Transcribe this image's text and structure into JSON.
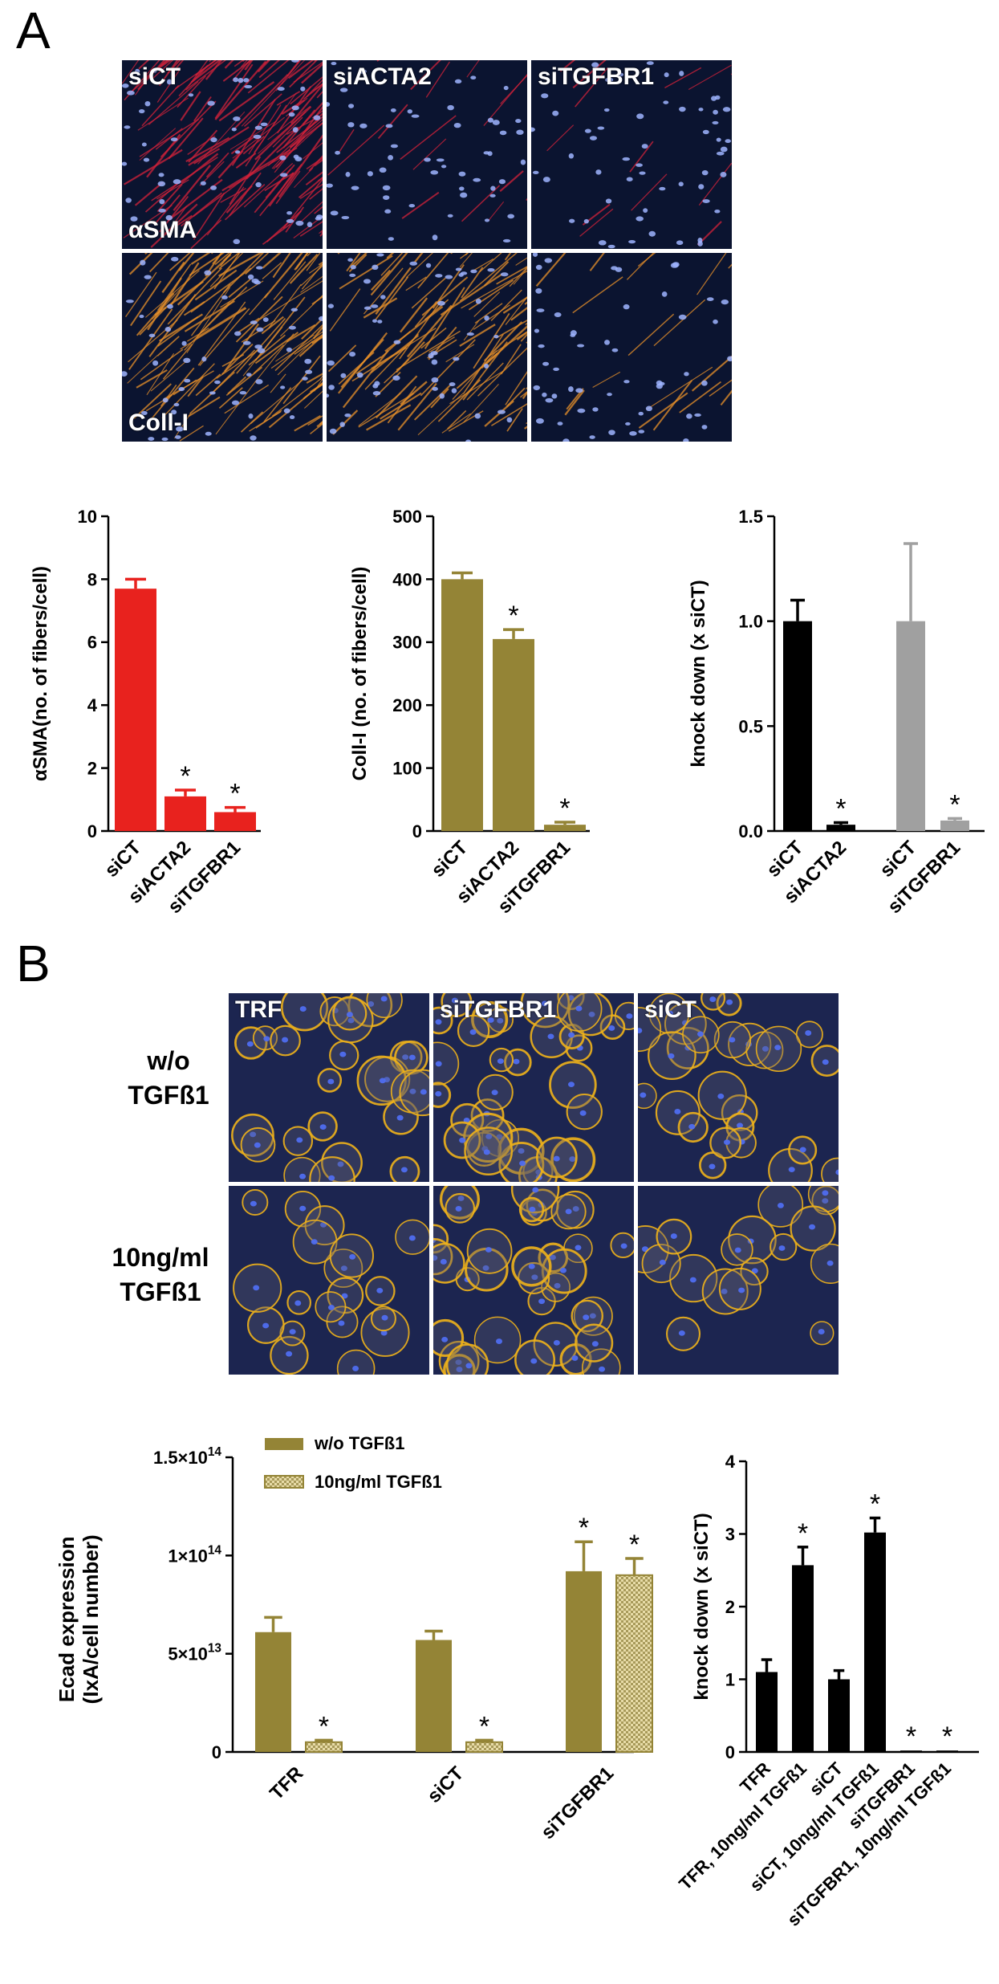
{
  "panel_a": {
    "letter": "A",
    "image_grid": {
      "columns": [
        "siCT",
        "siACTA2",
        "siTGFBR1"
      ],
      "rows": [
        {
          "label": "αSMA",
          "stain_color": "#d3223a"
        },
        {
          "label": "Coll-I",
          "stain_color": "#e8902a"
        }
      ],
      "nuclei_color": "#9fb4ff",
      "background_color": "#0b1430"
    }
  },
  "panel_b": {
    "letter": "B",
    "image_grid": {
      "columns": [
        "TRF",
        "siTGFBR1",
        "siCT"
      ],
      "rows": [
        {
          "label_lines": [
            "w/o",
            "TGFß1"
          ],
          "stain_color": "#f0b21a"
        },
        {
          "label_lines": [
            "10ng/ml",
            "TGFß1"
          ],
          "stain_color": "#f0b21a"
        }
      ],
      "nuclei_color": "#4f6df0",
      "background_color": "#1c2550"
    }
  },
  "chart_data": [
    {
      "id": "asma",
      "type": "bar",
      "categories": [
        "siCT",
        "siACTA2",
        "siTGFBR1"
      ],
      "values": [
        7.7,
        1.1,
        0.6
      ],
      "errors": [
        0.3,
        0.2,
        0.15
      ],
      "significant": [
        false,
        true,
        true
      ],
      "colors": [
        "#e8221e",
        "#e8221e",
        "#e8221e"
      ],
      "ylabel": "αSMA(no. of fibers/cell)",
      "ylim": [
        0,
        10
      ],
      "yticks": [
        "0",
        "2",
        "4",
        "6",
        "8",
        "10"
      ],
      "ytick_values": [
        0,
        2,
        4,
        6,
        8,
        10
      ]
    },
    {
      "id": "colli",
      "type": "bar",
      "categories": [
        "siCT",
        "siACTA2",
        "siTGFBR1"
      ],
      "values": [
        400,
        305,
        10
      ],
      "errors": [
        10,
        15,
        4
      ],
      "significant": [
        false,
        true,
        true
      ],
      "colors": [
        "#948436",
        "#948436",
        "#948436"
      ],
      "ylabel": "Coll-I (no. of fibers/cell)",
      "ylim": [
        0,
        500
      ],
      "yticks": [
        "0",
        "100",
        "200",
        "300",
        "400",
        "500"
      ],
      "ytick_values": [
        0,
        100,
        200,
        300,
        400,
        500
      ]
    },
    {
      "id": "kd_a",
      "type": "bar",
      "categories": [
        "siCT",
        "siACTA2",
        "siCT",
        "siTGFBR1"
      ],
      "values": [
        1.0,
        0.03,
        1.0,
        0.05
      ],
      "errors": [
        0.1,
        0.01,
        0.37,
        0.01
      ],
      "significant": [
        false,
        true,
        false,
        true
      ],
      "colors": [
        "#000000",
        "#000000",
        "#a0a0a0",
        "#a0a0a0"
      ],
      "ylabel": "knock down  (x siCT)",
      "ylim": [
        0,
        1.5
      ],
      "yticks": [
        "0.0",
        "0.5",
        "1.0",
        "1.5"
      ],
      "ytick_values": [
        0,
        0.5,
        1.0,
        1.5
      ]
    },
    {
      "id": "ecad",
      "type": "bar",
      "categories": [
        "TFR",
        "siCT",
        "siTGFBR1"
      ],
      "series": [
        {
          "name": "w/o TGFß1",
          "values": [
            61000000000000.0,
            57000000000000.0,
            92000000000000.0
          ],
          "errors": [
            7500000000000.0,
            4500000000000.0,
            15000000000000.0
          ],
          "significant": [
            false,
            false,
            true
          ],
          "color": "#948436"
        },
        {
          "name": "10ng/ml TGFß1",
          "values": [
            5000000000000.0,
            5000000000000.0,
            90000000000000.0
          ],
          "errors": [
            1000000000000.0,
            1000000000000.0,
            8500000000000.0
          ],
          "significant": [
            true,
            true,
            true
          ],
          "color": "#e8dca8"
        }
      ],
      "ylabel_lines": [
        "Ecad expression",
        "(IxA/cell number)"
      ],
      "ylim": [
        0,
        150000000000000.0
      ],
      "ytick_values": [
        0,
        50000000000000.0,
        100000000000000.0,
        150000000000000.0
      ],
      "ytick_labels": [
        {
          "base": "0",
          "exp": ""
        },
        {
          "base": "5×10",
          "exp": "13"
        },
        {
          "base": "1×10",
          "exp": "14"
        },
        {
          "base": "1.5×10",
          "exp": "14"
        }
      ],
      "legend_position": "top"
    },
    {
      "id": "kd_b",
      "type": "bar",
      "categories": [
        "TFR",
        "TFR, 10ng/ml TGFß1",
        "siCT",
        "siCT, 10ng/ml TGFß1",
        "siTGFBR1",
        "siTGFBR1, 10ng/ml TGFß1"
      ],
      "values": [
        1.1,
        2.57,
        1.0,
        3.02,
        0.02,
        0.02
      ],
      "errors": [
        0.17,
        0.25,
        0.12,
        0.2,
        0.0,
        0.0
      ],
      "significant": [
        false,
        true,
        false,
        true,
        true,
        true
      ],
      "colors": [
        "#000000",
        "#000000",
        "#000000",
        "#000000",
        "#000000",
        "#000000"
      ],
      "ylabel": "knock down  (x siCT)",
      "ylim": [
        0,
        4
      ],
      "yticks": [
        "0",
        "1",
        "2",
        "3",
        "4"
      ],
      "ytick_values": [
        0,
        1,
        2,
        3,
        4
      ]
    }
  ],
  "significance_marker": "*"
}
